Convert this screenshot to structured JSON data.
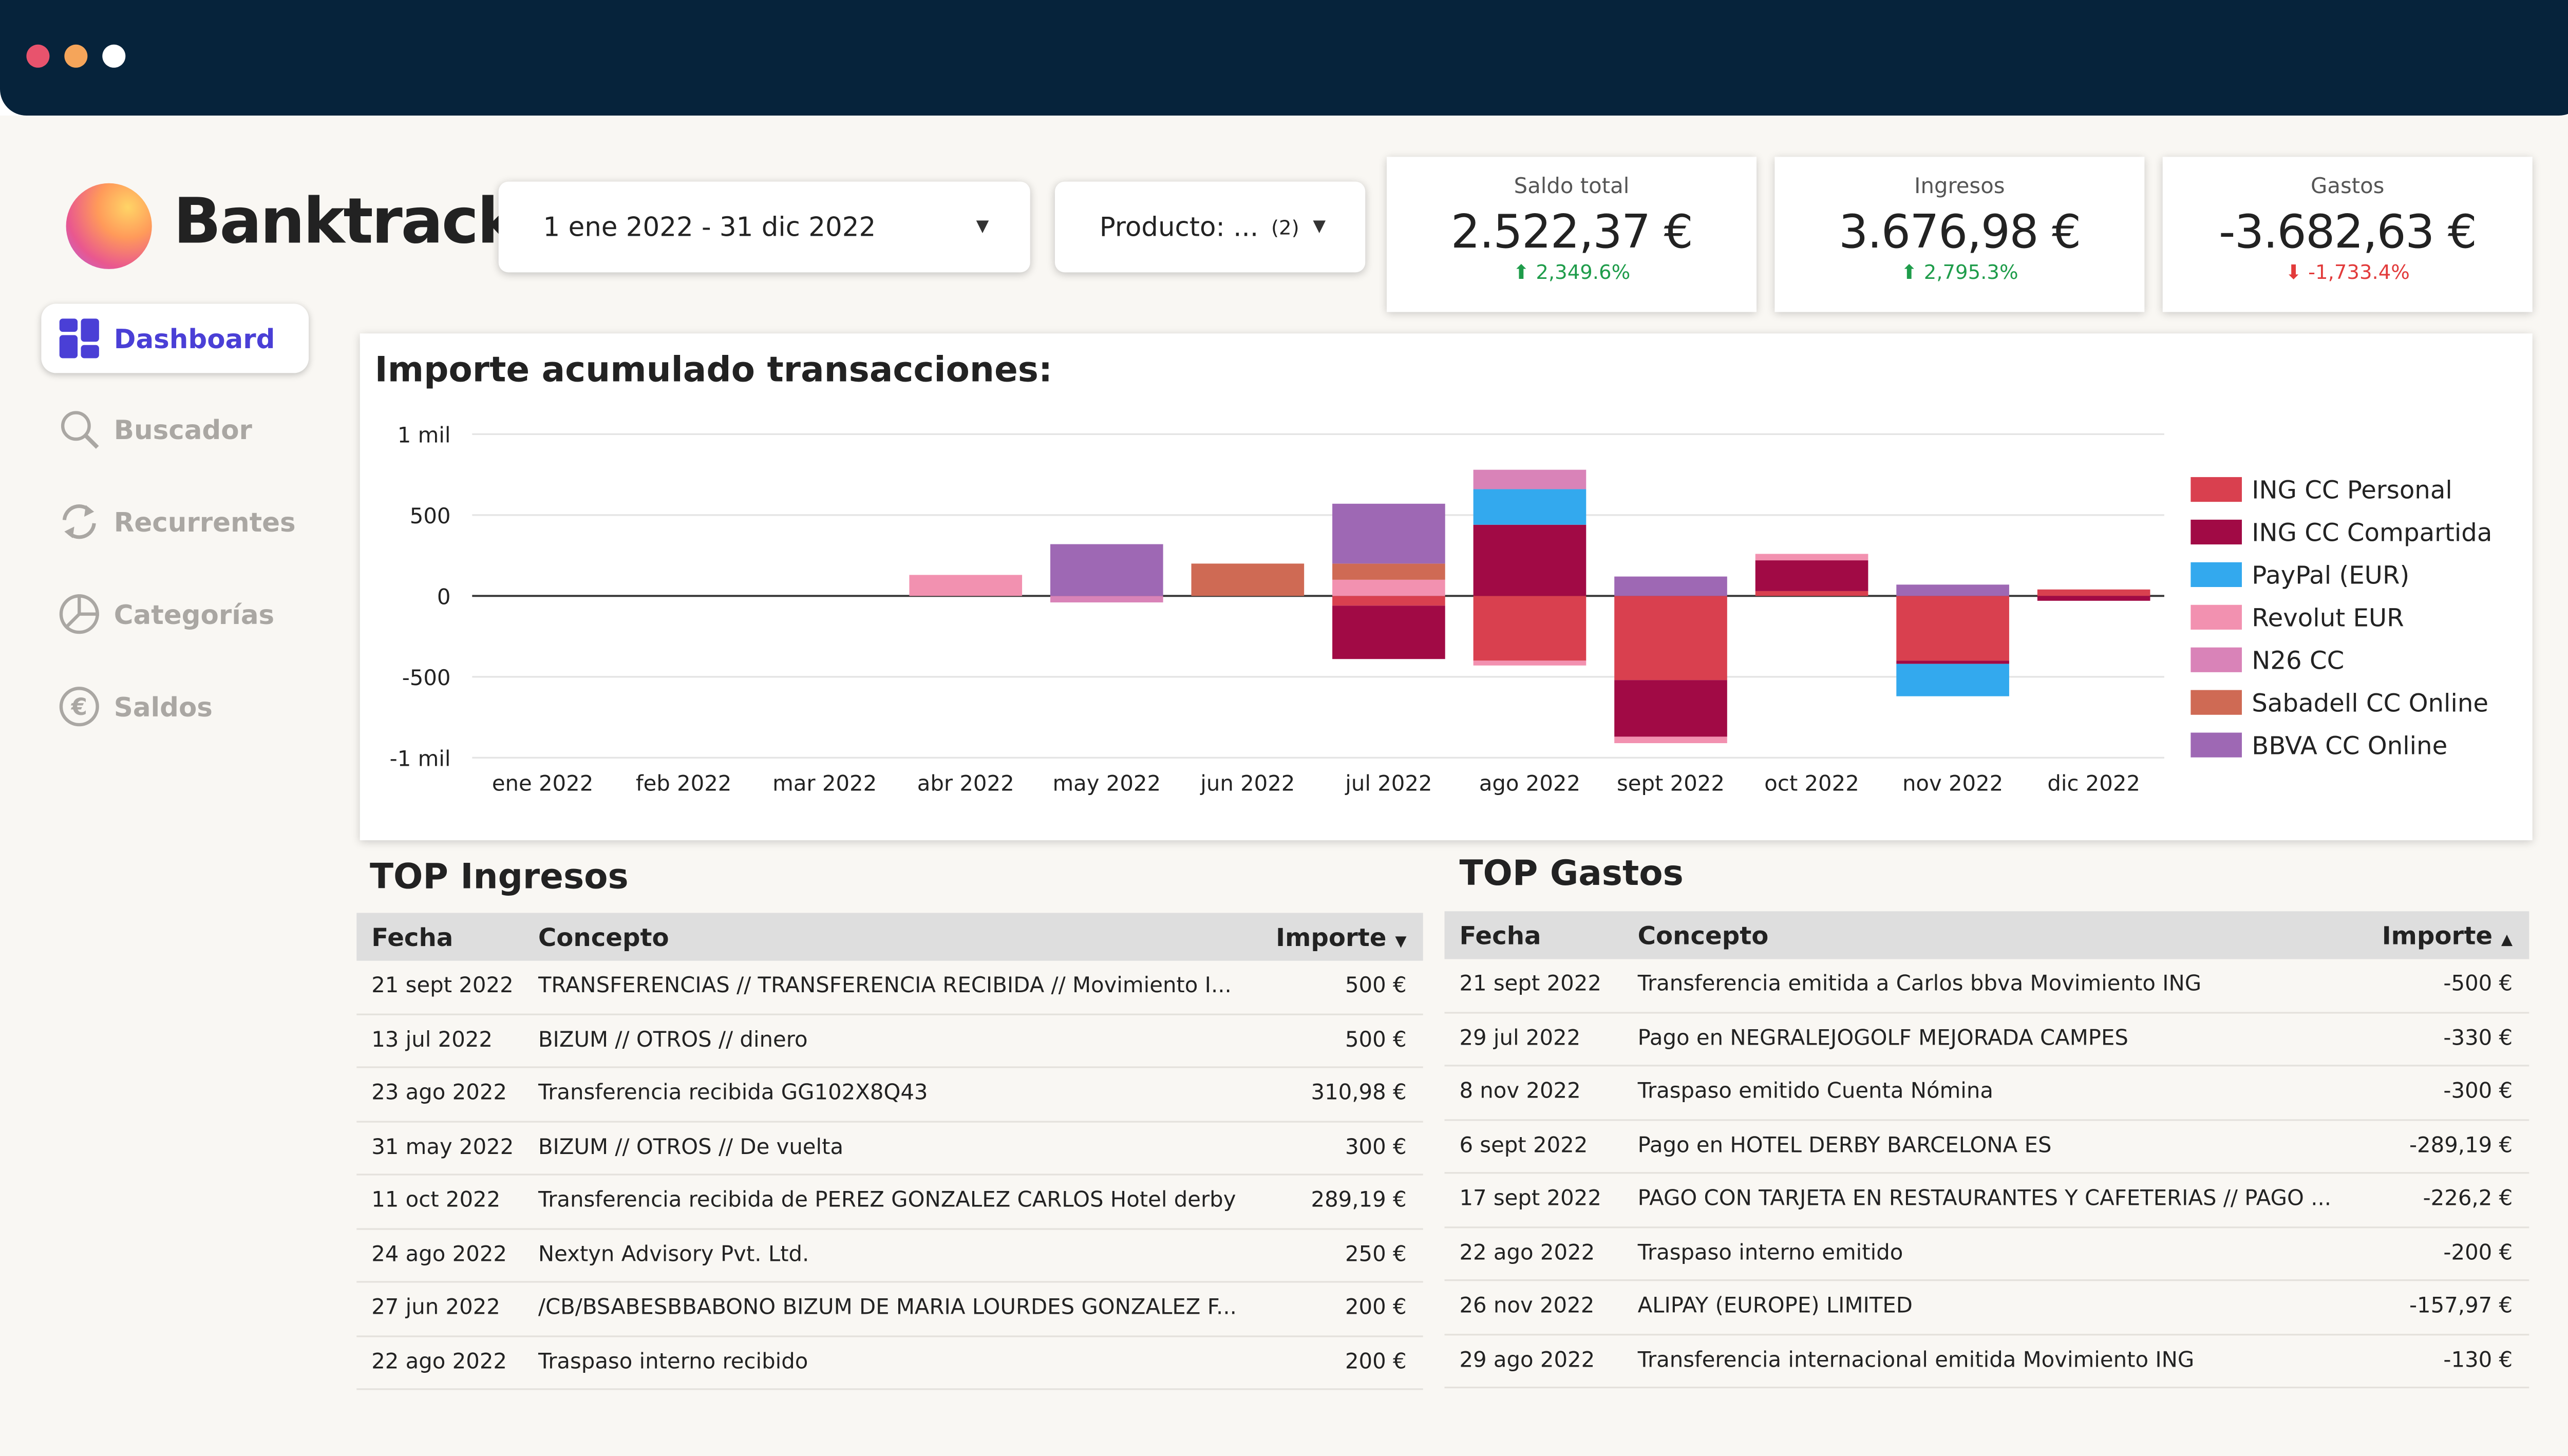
{
  "window": {
    "dot_colors": [
      "#e8536d",
      "#f5a55a",
      "#ffffff"
    ]
  },
  "app": {
    "brand": "Banktrack"
  },
  "sidebar": {
    "items": [
      {
        "label": "Dashboard",
        "icon": "dashboard-icon",
        "active": true
      },
      {
        "label": "Buscador",
        "icon": "search-icon",
        "active": false
      },
      {
        "label": "Recurrentes",
        "icon": "refresh-icon",
        "active": false
      },
      {
        "label": "Categorías",
        "icon": "pie-chart-icon",
        "active": false
      },
      {
        "label": "Saldos",
        "icon": "euro-icon",
        "active": false
      }
    ]
  },
  "filters": {
    "date_range": "1 ene 2022 - 31 dic 2022",
    "product_label": "Producto: ...",
    "product_count": "(2)"
  },
  "kpis": [
    {
      "label": "Saldo total",
      "value": "2.522,37 €",
      "change": "2,349.6%",
      "trend": "up"
    },
    {
      "label": "Ingresos",
      "value": "3.676,98 €",
      "change": "2,795.3%",
      "trend": "up"
    },
    {
      "label": "Gastos",
      "value": "-3.682,63 €",
      "change": "-1,733.4%",
      "trend": "down"
    }
  ],
  "chart_data": {
    "type": "bar",
    "stacked": true,
    "title": "Importe acumulado transacciones:",
    "categories": [
      "ene 2022",
      "feb 2022",
      "mar 2022",
      "abr 2022",
      "may 2022",
      "jun 2022",
      "jul 2022",
      "ago 2022",
      "sept 2022",
      "oct 2022",
      "nov 2022",
      "dic 2022"
    ],
    "yticks": [
      {
        "v": 1000,
        "label": "1 mil"
      },
      {
        "v": 500,
        "label": "500"
      },
      {
        "v": 0,
        "label": "0"
      },
      {
        "v": -500,
        "label": "-500"
      },
      {
        "v": -1000,
        "label": "-1 mil"
      }
    ],
    "ylim": [
      -1000,
      1000
    ],
    "legend_position": "right",
    "series": [
      {
        "name": "ING CC Personal",
        "color": "#d9404f",
        "values": [
          0,
          0,
          0,
          0,
          0,
          0,
          -60,
          -400,
          -520,
          30,
          -400,
          40
        ]
      },
      {
        "name": "ING CC Compartida",
        "color": "#a10a45",
        "values": [
          0,
          0,
          0,
          0,
          0,
          0,
          -330,
          440,
          -350,
          190,
          -20,
          -30
        ]
      },
      {
        "name": "PayPal (EUR)",
        "color": "#33a9ee",
        "values": [
          0,
          0,
          0,
          0,
          0,
          0,
          0,
          220,
          0,
          0,
          -200,
          0
        ]
      },
      {
        "name": "Revolut EUR",
        "color": "#f291b0",
        "values": [
          0,
          0,
          0,
          130,
          0,
          0,
          100,
          -30,
          -40,
          40,
          0,
          0
        ]
      },
      {
        "name": "N26 CC",
        "color": "#d983b8",
        "values": [
          0,
          0,
          0,
          0,
          -40,
          0,
          0,
          120,
          0,
          0,
          0,
          0
        ]
      },
      {
        "name": "Sabadell CC Online",
        "color": "#cf6a54",
        "values": [
          0,
          0,
          0,
          0,
          0,
          200,
          100,
          0,
          0,
          0,
          0,
          0
        ]
      },
      {
        "name": "BBVA CC Online",
        "color": "#9e68b4",
        "values": [
          0,
          0,
          0,
          0,
          320,
          0,
          370,
          0,
          120,
          0,
          70,
          0
        ]
      }
    ]
  },
  "top_ingresos": {
    "title": "TOP Ingresos",
    "headers": {
      "fecha": "Fecha",
      "concepto": "Concepto",
      "importe": "Importe",
      "sort": "▼"
    },
    "rows": [
      {
        "fecha": "21 sept 2022",
        "concepto": "TRANSFERENCIAS // TRANSFERENCIA RECIBIDA // Movimiento I...",
        "importe": "500 €"
      },
      {
        "fecha": "13 jul 2022",
        "concepto": "BIZUM // OTROS // dinero",
        "importe": "500 €"
      },
      {
        "fecha": "23 ago 2022",
        "concepto": "Transferencia recibida GG102X8Q43",
        "importe": "310,98 €"
      },
      {
        "fecha": "31 may 2022",
        "concepto": "BIZUM // OTROS // De vuelta",
        "importe": "300 €"
      },
      {
        "fecha": "11 oct 2022",
        "concepto": "Transferencia recibida de PEREZ GONZALEZ CARLOS Hotel derby",
        "importe": "289,19 €"
      },
      {
        "fecha": "24 ago 2022",
        "concepto": "Nextyn Advisory Pvt. Ltd.",
        "importe": "250 €"
      },
      {
        "fecha": "27 jun 2022",
        "concepto": "/CB/BSABESBBABONO BIZUM DE MARIA LOURDES GONZALEZ F...",
        "importe": "200 €"
      },
      {
        "fecha": "22 ago 2022",
        "concepto": "Traspaso interno recibido",
        "importe": "200 €"
      }
    ]
  },
  "top_gastos": {
    "title": "TOP Gastos",
    "headers": {
      "fecha": "Fecha",
      "concepto": "Concepto",
      "importe": "Importe",
      "sort": "▲"
    },
    "rows": [
      {
        "fecha": "21 sept 2022",
        "concepto": "Transferencia emitida a Carlos bbva Movimiento ING",
        "importe": "-500 €"
      },
      {
        "fecha": "29 jul 2022",
        "concepto": "Pago en NEGRALEJOGOLF MEJORADA CAMPES",
        "importe": "-330 €"
      },
      {
        "fecha": "8 nov 2022",
        "concepto": "Traspaso emitido Cuenta Nómina",
        "importe": "-300 €"
      },
      {
        "fecha": "6 sept 2022",
        "concepto": "Pago en HOTEL DERBY BARCELONA ES",
        "importe": "-289,19 €"
      },
      {
        "fecha": "17 sept 2022",
        "concepto": "PAGO CON TARJETA EN RESTAURANTES Y CAFETERIAS // PAGO ...",
        "importe": "-226,2 €"
      },
      {
        "fecha": "22 ago 2022",
        "concepto": "Traspaso interno emitido",
        "importe": "-200 €"
      },
      {
        "fecha": "26 nov 2022",
        "concepto": "ALIPAY (EUROPE) LIMITED",
        "importe": "-157,97 €"
      },
      {
        "fecha": "29 ago 2022",
        "concepto": "Transferencia internacional emitida Movimiento ING",
        "importe": "-130 €"
      }
    ]
  }
}
